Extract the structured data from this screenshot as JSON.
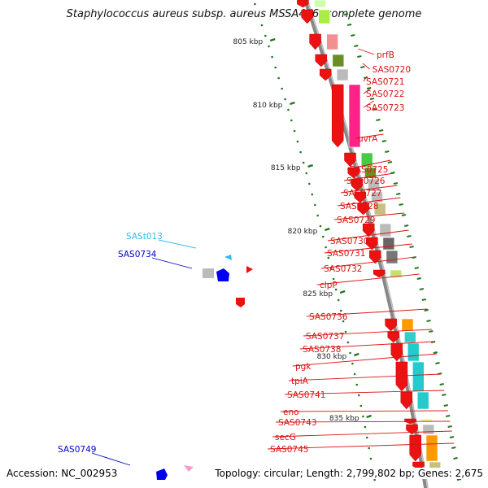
{
  "title": "Staphylococcus aureus subsp. aureus MSSA476, complete genome",
  "footer": {
    "accession": "Accession: NC_002953",
    "summary": "Topology: circular; Length: 2,799,802 bp; Genes: 2,675"
  },
  "scale_labels": [
    "805 kbp",
    "810 kbp",
    "815 kbp",
    "820 kbp",
    "825 kbp",
    "830 kbp",
    "835 kbp"
  ],
  "colors": {
    "label_red": "#dd1111",
    "label_cyan": "#33bbee",
    "label_blue": "#0000cc",
    "backbone": "#888888",
    "tick_green": "#1f7a1f"
  },
  "right_labels": [
    "prfB",
    "SAS0720",
    "SAS0721",
    "SAS0722",
    "SAS0723",
    "uvrA",
    "SAS0725",
    "SAS0726",
    "SAS0727",
    "SAS0728",
    "SAS0729",
    "SAS0730",
    "SAS0731",
    "SAS0732",
    "clpP",
    "SAS0736",
    "SAS0737",
    "SAS0738",
    "pgk",
    "tpiA",
    "SAS0741",
    "eno",
    "SAS0743",
    "secG",
    "SAS0745"
  ],
  "left_labels": [
    {
      "text": "SASt013",
      "color": "cyan"
    },
    {
      "text": "SAS0734",
      "color": "blue"
    },
    {
      "text": "SAS0749",
      "color": "blue"
    }
  ]
}
